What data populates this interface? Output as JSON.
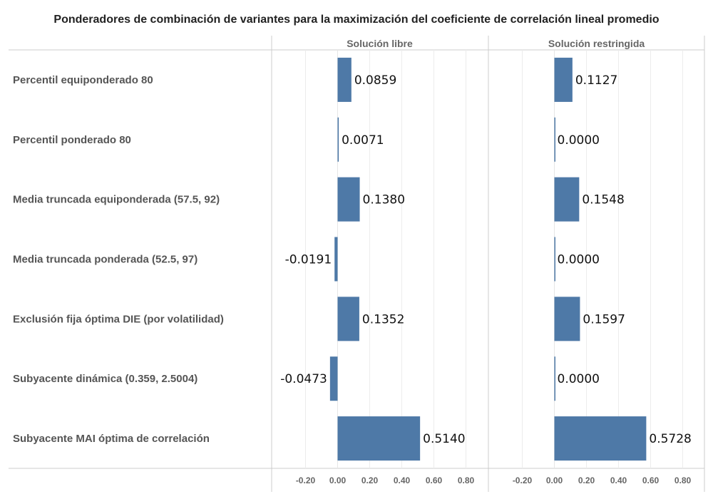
{
  "title": "Ponderadores de combinación de variantes para la maximización del coeficiente de correlación lineal promedio",
  "colors": {
    "bar": "#4e79a7",
    "grid": "#ececec",
    "axis": "#bbbbbb",
    "border": "#cccccc"
  },
  "chart_data": {
    "type": "bar",
    "orientation": "horizontal",
    "title": "Ponderadores de combinación de variantes para la maximización del coeficiente de correlación lineal promedio",
    "categories": [
      "Percentil equiponderado 80",
      "Percentil ponderado 80",
      "Media truncada equiponderada (57.5, 92)",
      "Media truncada ponderada (52.5, 97)",
      "Exclusión fija óptima DIE (por volatilidad)",
      "Subyacente dinámica (0.359, 2.5004)",
      "Subyacente MAI óptima de correlación"
    ],
    "series": [
      {
        "name": "Solución libre",
        "values": [
          0.0859,
          0.0071,
          0.138,
          -0.0191,
          0.1352,
          -0.0473,
          0.514
        ],
        "labels": [
          "0.0859",
          "0.0071",
          "0.1380",
          "-0.0191",
          "0.1352",
          "-0.0473",
          "0.5140"
        ]
      },
      {
        "name": "Solución restringida",
        "values": [
          0.1127,
          0.0,
          0.1548,
          0.0,
          0.1597,
          0.0,
          0.5728
        ],
        "labels": [
          "0.1127",
          "0.0000",
          "0.1548",
          "0.0000",
          "0.1597",
          "0.0000",
          "0.5728"
        ]
      }
    ],
    "xlim": [
      -0.3,
      0.9
    ],
    "xticks": [
      -0.2,
      0.0,
      0.2,
      0.4,
      0.6,
      0.8
    ],
    "xtick_labels": [
      "-0.20",
      "0.00",
      "0.20",
      "0.40",
      "0.60",
      "0.80"
    ],
    "grid": true,
    "legend": "none"
  }
}
